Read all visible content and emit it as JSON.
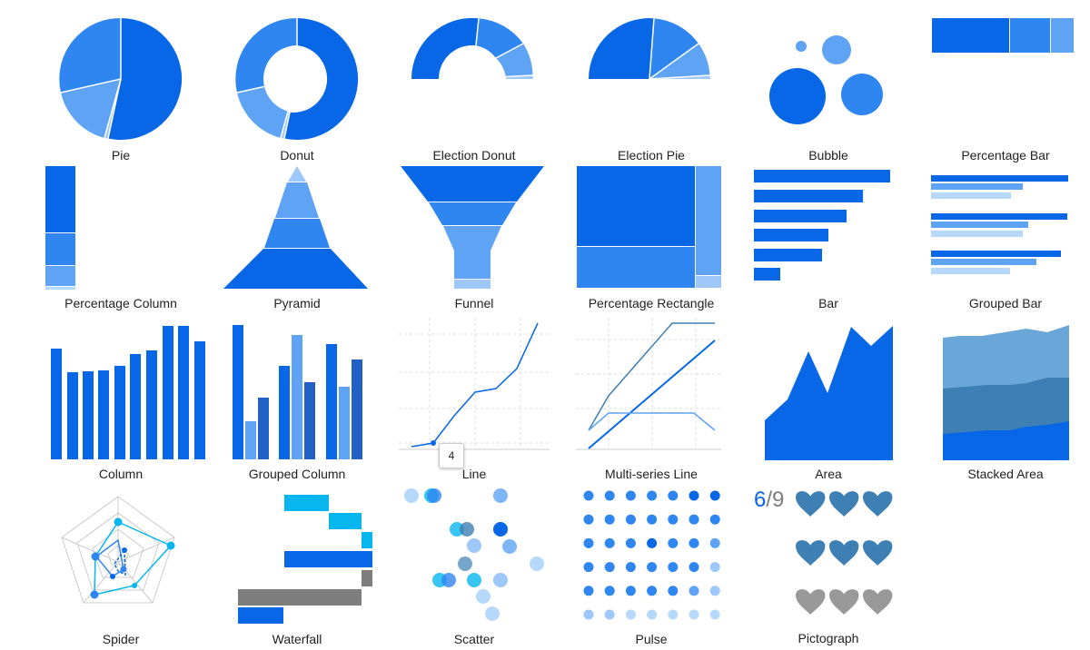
{
  "colors": {
    "primary": "#0767e6",
    "medium": "#2f86f0",
    "light": "#5ea3f4",
    "lighter": "#9ec7fa",
    "pale": "#b6d9fb",
    "cyan": "#07b6ef",
    "steel": "#3f80b4",
    "steel_light": "#6aa6d7",
    "gray": "#7d7d7d",
    "heart_gray": "#999999",
    "grid": "#dddddd"
  },
  "gallery": [
    {
      "id": "pie",
      "label": "Pie",
      "icon": "pie-chart-icon"
    },
    {
      "id": "donut",
      "label": "Donut",
      "icon": "donut-chart-icon"
    },
    {
      "id": "election-donut",
      "label": "Election Donut",
      "icon": "election-donut-chart-icon"
    },
    {
      "id": "election-pie",
      "label": "Election Pie",
      "icon": "election-pie-chart-icon"
    },
    {
      "id": "bubble",
      "label": "Bubble",
      "icon": "bubble-chart-icon"
    },
    {
      "id": "percentage-bar",
      "label": "Percentage Bar",
      "icon": "percentage-bar-chart-icon"
    },
    {
      "id": "percentage-column",
      "label": "Percentage Column",
      "icon": "percentage-column-chart-icon"
    },
    {
      "id": "pyramid",
      "label": "Pyramid",
      "icon": "pyramid-chart-icon"
    },
    {
      "id": "funnel",
      "label": "Funnel",
      "icon": "funnel-chart-icon"
    },
    {
      "id": "percentage-rectangle",
      "label": "Percentage Rectangle",
      "icon": "percentage-rectangle-chart-icon"
    },
    {
      "id": "bar",
      "label": "Bar",
      "icon": "bar-chart-icon"
    },
    {
      "id": "grouped-bar",
      "label": "Grouped Bar",
      "icon": "grouped-bar-chart-icon"
    },
    {
      "id": "column",
      "label": "Column",
      "icon": "column-chart-icon"
    },
    {
      "id": "grouped-column",
      "label": "Grouped Column",
      "icon": "grouped-column-chart-icon"
    },
    {
      "id": "line",
      "label": "Line",
      "icon": "line-chart-icon"
    },
    {
      "id": "multi-series-line",
      "label": "Multi-series Line",
      "icon": "multi-series-line-chart-icon"
    },
    {
      "id": "area",
      "label": "Area",
      "icon": "area-chart-icon"
    },
    {
      "id": "stacked-area",
      "label": "Stacked Area",
      "icon": "stacked-area-chart-icon"
    },
    {
      "id": "spider",
      "label": "Spider",
      "icon": "spider-chart-icon"
    },
    {
      "id": "waterfall",
      "label": "Waterfall",
      "icon": "waterfall-chart-icon"
    },
    {
      "id": "scatter",
      "label": "Scatter",
      "icon": "scatter-chart-icon"
    },
    {
      "id": "pulse",
      "label": "Pulse",
      "icon": "pulse-chart-icon"
    },
    {
      "id": "pictograph",
      "label": "Pictograph",
      "icon": "pictograph-chart-icon"
    }
  ],
  "line_tooltip": "4",
  "pictograph": {
    "value": "6",
    "separator": "/",
    "total": "9"
  }
}
